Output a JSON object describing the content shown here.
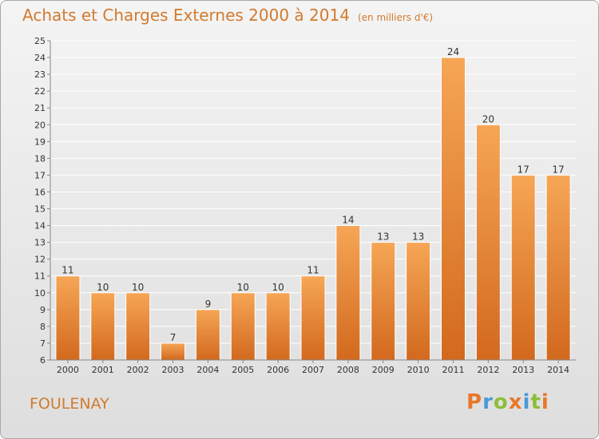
{
  "chart": {
    "title": "Achats et Charges Externes 2000 à 2014",
    "subtitle": "(en milliers d'€)",
    "place": "FOULENAY",
    "logo": "Proxiti"
  },
  "colors": {
    "bar": "#f08a25",
    "bar_light": "#f6aa5e",
    "text_accent": "#d27a2e",
    "grid": "#ffffff"
  },
  "chart_data": {
    "type": "bar",
    "title": "Achats et Charges Externes 2000 à 2014",
    "subtitle": "(en milliers d'€)",
    "categories": [
      "2000",
      "2001",
      "2002",
      "2003",
      "2004",
      "2005",
      "2006",
      "2007",
      "2008",
      "2009",
      "2010",
      "2011",
      "2012",
      "2013",
      "2014"
    ],
    "values": [
      11,
      10,
      10,
      7,
      9,
      10,
      10,
      11,
      14,
      13,
      13,
      24,
      20,
      17,
      17
    ],
    "ylim": [
      6,
      25
    ],
    "yticks": [
      6,
      7,
      8,
      9,
      10,
      11,
      12,
      13,
      14,
      15,
      16,
      17,
      18,
      19,
      20,
      21,
      22,
      23,
      24,
      25
    ],
    "grid": true,
    "data_labels": true
  }
}
